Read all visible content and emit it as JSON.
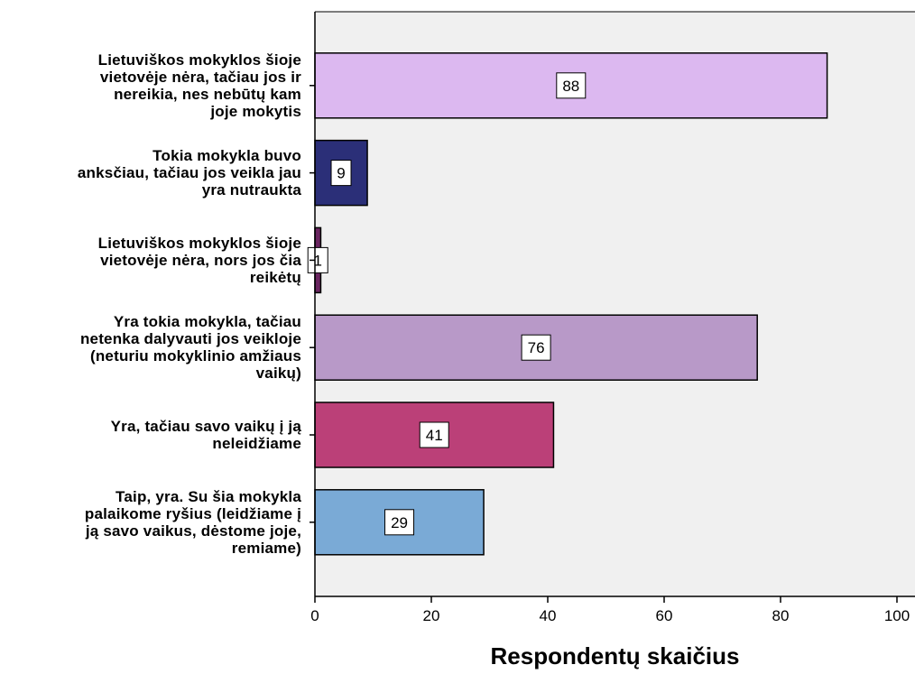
{
  "chart_data": {
    "type": "bar",
    "orientation": "horizontal",
    "categories": [
      "Lietuviškos mokyklos šioje vietovėje nėra, tačiau jos ir nereikia, nes nebūtų kam joje mokytis",
      "Tokia mokykla buvo anksčiau, tačiau jos veikla jau yra nutraukta",
      "Lietuviškos mokyklos šioje vietovėje nėra, nors jos čia reikėtų",
      "Yra tokia mokykla, tačiau netenka dalyvauti jos veikloje (neturiu mokyklinio amžiaus vaikų)",
      "Yra, tačiau savo vaikų į ją neleidžiame",
      "Taip, yra. Su šia mokykla palaikome ryšius (leidžiame į ją savo vaikus, dėstome joje, remiame)"
    ],
    "category_lines": [
      [
        "Lietuviškos mokyklos šioje",
        "vietovėje nėra, tačiau jos ir",
        "nereikia, nes nebūtų kam",
        "joje mokytis"
      ],
      [
        "Tokia mokykla buvo",
        "anksčiau, tačiau jos veikla jau",
        "yra nutraukta"
      ],
      [
        "Lietuviškos mokyklos šioje",
        "vietovėje nėra, nors jos čia",
        "reikėtų"
      ],
      [
        "Yra tokia mokykla, tačiau",
        "netenka dalyvauti jos veikloje",
        "(neturiu mokyklinio amžiaus",
        "vaikų)"
      ],
      [
        "Yra, tačiau savo vaikų į ją",
        "neleidžiame"
      ],
      [
        "Taip, yra. Su šia mokykla",
        "palaikome ryšius (leidžiame į",
        "ją savo vaikus, dėstome joje,",
        "remiame)"
      ]
    ],
    "values": [
      88,
      9,
      1,
      76,
      41,
      29
    ],
    "colors": [
      "#dcb8f0",
      "#2b2f78",
      "#6a2560",
      "#b899c8",
      "#bb4078",
      "#7aaad6"
    ],
    "xlabel": "Respondentų skaičius",
    "xlim": [
      0,
      100
    ],
    "xticks": [
      0,
      20,
      40,
      60,
      80,
      100
    ],
    "plot_background": "#f0f0f0",
    "grid": false,
    "legend": "none"
  }
}
